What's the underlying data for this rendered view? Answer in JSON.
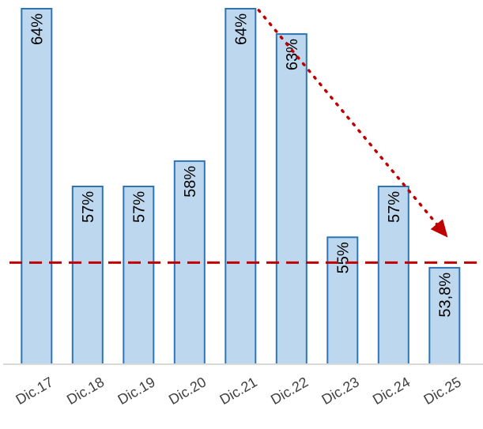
{
  "chart_data": {
    "type": "bar",
    "categories": [
      "Dic.17",
      "Dic.18",
      "Dic.19",
      "Dic.20",
      "Dic.21",
      "Dic.22",
      "Dic.23",
      "Dic.24",
      "Dic.25"
    ],
    "values": [
      64,
      57,
      57,
      58,
      64,
      63,
      55,
      57,
      53.8
    ],
    "data_labels": [
      "64%",
      "57%",
      "57%",
      "58%",
      "64%",
      "63%",
      "55%",
      "57%",
      "53,8%"
    ],
    "ylim": [
      50,
      64
    ],
    "reference_line": 54,
    "trend": {
      "from": "Dic.21",
      "from_value": 64,
      "to": "Dic.25",
      "to_value": 55
    },
    "grid": false,
    "legend": "none",
    "colors": {
      "bar_fill": "#bdd7ee",
      "bar_stroke": "#2e75b6",
      "annotation": "#c00000"
    }
  }
}
